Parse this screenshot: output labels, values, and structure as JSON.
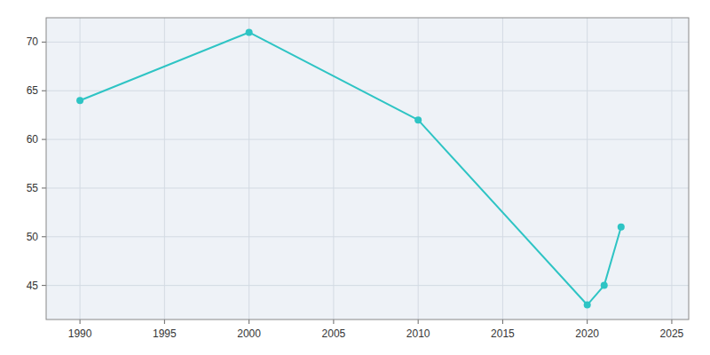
{
  "chart_data": {
    "type": "line",
    "x": [
      1990,
      2000,
      2010,
      2020,
      2021,
      2022
    ],
    "values": [
      64,
      71,
      62,
      43,
      45,
      51
    ],
    "color": "#2ec4c4",
    "marker": "circle",
    "xlim": [
      1988,
      2026
    ],
    "ylim": [
      41.5,
      72.5
    ],
    "xticks": [
      1990,
      1995,
      2000,
      2005,
      2010,
      2015,
      2020,
      2025
    ],
    "yticks": [
      45,
      50,
      55,
      60,
      65,
      70
    ],
    "grid": true
  }
}
